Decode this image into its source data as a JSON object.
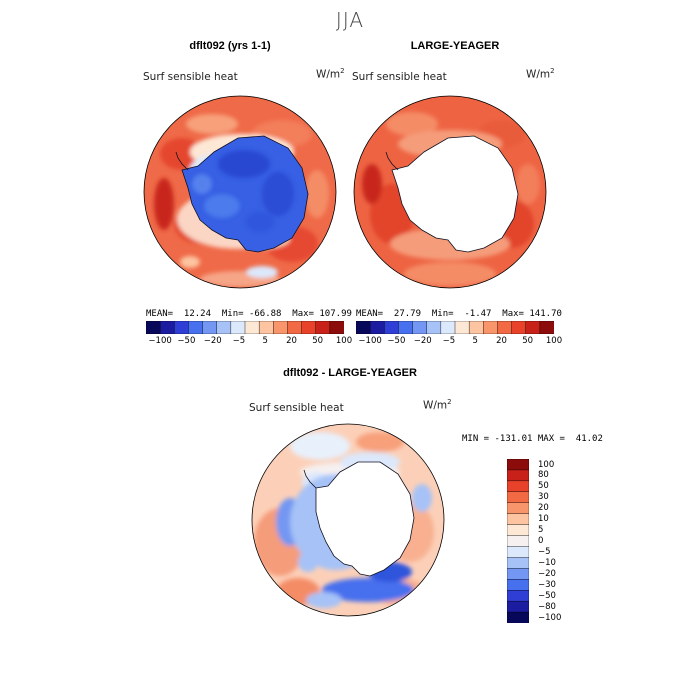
{
  "figure": {
    "title": "JJA"
  },
  "panels": [
    {
      "id": "left",
      "title": "dflt092 (yrs 1-1)",
      "field": "Surf sensible heat",
      "units_base": "W/m",
      "units_exp": "2",
      "stats": "MEAN=  12.24  Min= -66.88  Max= 107.99",
      "land_fill": "blue"
    },
    {
      "id": "right",
      "title": "LARGE-YEAGER",
      "field": "Surf sensible heat",
      "units_base": "W/m",
      "units_exp": "2",
      "stats": "MEAN=  27.79  Min=  -1.47  Max= 141.70",
      "land_fill": "none"
    },
    {
      "id": "diff",
      "title": "dflt092 - LARGE-YEAGER",
      "field": "Surf sensible heat",
      "units_base": "W/m",
      "units_exp": "2",
      "stats": "MIN = -131.01 MAX =  41.02",
      "land_fill": "none"
    }
  ],
  "chart_data": [
    {
      "type": "heatmap",
      "title": "dflt092 (yrs 1-1)",
      "subtitle": "Surf sensible heat",
      "units": "W/m^2",
      "projection": "south polar stereographic",
      "mean": 12.24,
      "min": -66.88,
      "max": 107.99,
      "colorbar": {
        "levels": [
          -100,
          -50,
          -20,
          -5,
          5,
          20,
          50,
          100
        ],
        "tick_labels": [
          "-100",
          "-50",
          "-20",
          "-5",
          "5",
          "20",
          "50",
          "100"
        ],
        "colors": [
          "#08085a",
          "#1c1ca0",
          "#2f3fd6",
          "#4670ee",
          "#7397f2",
          "#a6c2f7",
          "#dce8fb",
          "#fde7d5",
          "#fcc4a0",
          "#f8956a",
          "#f26a44",
          "#e8422a",
          "#c8211a",
          "#8c0c0c"
        ]
      }
    },
    {
      "type": "heatmap",
      "title": "LARGE-YEAGER",
      "subtitle": "Surf sensible heat",
      "units": "W/m^2",
      "projection": "south polar stereographic",
      "mean": 27.79,
      "min": -1.47,
      "max": 141.7,
      "colorbar": {
        "levels": [
          -100,
          -50,
          -20,
          -5,
          5,
          20,
          50,
          100
        ],
        "tick_labels": [
          "-100",
          "-50",
          "-20",
          "-5",
          "5",
          "20",
          "50",
          "100"
        ],
        "colors": [
          "#08085a",
          "#1c1ca0",
          "#2f3fd6",
          "#4670ee",
          "#7397f2",
          "#a6c2f7",
          "#dce8fb",
          "#fde7d5",
          "#fcc4a0",
          "#f8956a",
          "#f26a44",
          "#e8422a",
          "#c8211a",
          "#8c0c0c"
        ]
      }
    },
    {
      "type": "heatmap",
      "title": "dflt092 - LARGE-YEAGER",
      "subtitle": "Surf sensible heat",
      "units": "W/m^2",
      "projection": "south polar stereographic",
      "min": -131.01,
      "max": 41.02,
      "colorbar": {
        "orientation": "vertical",
        "levels": [
          100,
          80,
          50,
          30,
          20,
          10,
          5,
          0,
          -5,
          -10,
          -20,
          -30,
          -50,
          -80,
          -100
        ],
        "tick_labels": [
          "100",
          "80",
          "50",
          "30",
          "20",
          "10",
          "5",
          "0",
          "-5",
          "-10",
          "-20",
          "-30",
          "-50",
          "-80",
          "-100"
        ],
        "colors": [
          "#8c0c0c",
          "#c8211a",
          "#e8422a",
          "#f26a44",
          "#f8956a",
          "#fcc4a0",
          "#fde7d5",
          "#f6f0f0",
          "#dce8fb",
          "#a6c2f7",
          "#7397f2",
          "#4670ee",
          "#2f3fd6",
          "#1c1ca0",
          "#08085a"
        ]
      }
    }
  ]
}
